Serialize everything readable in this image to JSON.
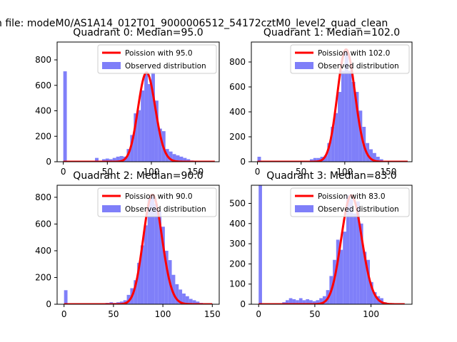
{
  "suptitle": "n file: modeM0/AS1A14_012T01_9000006512_54172cztM0_level2_quad_clean",
  "colors": {
    "hist": "#7f7ff9",
    "poisson": "#ff0000",
    "axes": "#000000"
  },
  "chart_data": [
    {
      "type": "bar",
      "title": "Quadrant 0: Median=95.0",
      "legend": {
        "placement": "top-right",
        "entries": [
          "Poission with 95.0",
          "Observed distribution"
        ]
      },
      "xlim": [
        -7,
        177
      ],
      "ylim": [
        0,
        940
      ],
      "xticks": [
        0,
        50,
        100,
        150
      ],
      "yticks": [
        0,
        200,
        400,
        600,
        800
      ],
      "bin_width": 4,
      "bins": [
        [
          0,
          710
        ],
        [
          36,
          30
        ],
        [
          44,
          20
        ],
        [
          48,
          25
        ],
        [
          52,
          20
        ],
        [
          56,
          30
        ],
        [
          60,
          40
        ],
        [
          64,
          45
        ],
        [
          68,
          40
        ],
        [
          72,
          100
        ],
        [
          76,
          210
        ],
        [
          80,
          380
        ],
        [
          84,
          405
        ],
        [
          88,
          560
        ],
        [
          92,
          700
        ],
        [
          96,
          610
        ],
        [
          100,
          700
        ],
        [
          104,
          480
        ],
        [
          108,
          260
        ],
        [
          112,
          240
        ],
        [
          116,
          100
        ],
        [
          120,
          80
        ],
        [
          124,
          60
        ],
        [
          128,
          50
        ],
        [
          132,
          40
        ],
        [
          136,
          30
        ],
        [
          140,
          20
        ],
        [
          144,
          10
        ]
      ],
      "poisson_mean": 95.0,
      "poisson_x": [
        0,
        172
      ]
    },
    {
      "type": "bar",
      "title": "Quadrant 1: Median=102.0",
      "legend": {
        "placement": "top-right",
        "entries": [
          "Poission with 102.0",
          "Observed distribution"
        ]
      },
      "xlim": [
        -7,
        177
      ],
      "ylim": [
        0,
        960
      ],
      "xticks": [
        0,
        50,
        100,
        150
      ],
      "yticks": [
        0,
        200,
        400,
        600,
        800
      ],
      "bin_width": 4,
      "bins": [
        [
          0,
          40
        ],
        [
          60,
          20
        ],
        [
          64,
          30
        ],
        [
          68,
          30
        ],
        [
          72,
          40
        ],
        [
          76,
          50
        ],
        [
          80,
          150
        ],
        [
          84,
          280
        ],
        [
          88,
          390
        ],
        [
          92,
          560
        ],
        [
          96,
          730
        ],
        [
          100,
          900
        ],
        [
          104,
          730
        ],
        [
          108,
          640
        ],
        [
          112,
          560
        ],
        [
          116,
          410
        ],
        [
          120,
          280
        ],
        [
          124,
          150
        ],
        [
          128,
          100
        ],
        [
          132,
          70
        ],
        [
          136,
          40
        ],
        [
          140,
          20
        ]
      ],
      "poisson_mean": 102.0,
      "poisson_x": [
        0,
        172
      ]
    },
    {
      "type": "bar",
      "title": "Quadrant 2: Median=90.0",
      "legend": {
        "placement": "top-right",
        "entries": [
          "Poission with 90.0",
          "Observed distribution"
        ]
      },
      "xlim": [
        -7,
        157
      ],
      "ylim": [
        0,
        890
      ],
      "xticks": [
        0,
        50,
        100,
        150
      ],
      "yticks": [
        0,
        200,
        400,
        600,
        800
      ],
      "bin_width": 3.5,
      "bins": [
        [
          0,
          105
        ],
        [
          42,
          10
        ],
        [
          46,
          15
        ],
        [
          49.5,
          10
        ],
        [
          53,
          15
        ],
        [
          56.5,
          20
        ],
        [
          60,
          30
        ],
        [
          63.5,
          70
        ],
        [
          67,
          120
        ],
        [
          70.5,
          180
        ],
        [
          74,
          310
        ],
        [
          77.5,
          440
        ],
        [
          81,
          590
        ],
        [
          84.5,
          790
        ],
        [
          88,
          820
        ],
        [
          91.5,
          750
        ],
        [
          95,
          700
        ],
        [
          98.5,
          580
        ],
        [
          102,
          400
        ],
        [
          105.5,
          330
        ],
        [
          109,
          220
        ],
        [
          112.5,
          150
        ],
        [
          116,
          110
        ],
        [
          119.5,
          80
        ],
        [
          123,
          60
        ],
        [
          126.5,
          40
        ],
        [
          130,
          30
        ],
        [
          133.5,
          20
        ],
        [
          137,
          10
        ]
      ],
      "poisson_mean": 90.0,
      "poisson_x": [
        0,
        150
      ]
    },
    {
      "type": "bar",
      "title": "Quadrant 3: Median=83.0",
      "legend": {
        "placement": "top-right",
        "entries": [
          "Poission with 83.0",
          "Observed distribution"
        ]
      },
      "xlim": [
        -6.5,
        136.5
      ],
      "ylim": [
        0,
        590
      ],
      "xticks": [
        0,
        50,
        100
      ],
      "yticks": [
        0,
        100,
        200,
        300,
        400,
        500
      ],
      "bin_width": 3,
      "bins": [
        [
          0,
          590
        ],
        [
          18,
          5
        ],
        [
          21,
          10
        ],
        [
          24,
          20
        ],
        [
          27,
          30
        ],
        [
          30,
          25
        ],
        [
          33,
          20
        ],
        [
          36,
          30
        ],
        [
          39,
          20
        ],
        [
          42,
          25
        ],
        [
          45,
          20
        ],
        [
          48,
          15
        ],
        [
          51,
          20
        ],
        [
          54,
          30
        ],
        [
          57,
          40
        ],
        [
          60,
          70
        ],
        [
          63,
          140
        ],
        [
          66,
          220
        ],
        [
          69,
          320
        ],
        [
          72,
          270
        ],
        [
          75,
          360
        ],
        [
          78,
          540
        ],
        [
          81,
          520
        ],
        [
          84,
          450
        ],
        [
          87,
          510
        ],
        [
          90,
          400
        ],
        [
          93,
          260
        ],
        [
          96,
          220
        ],
        [
          99,
          110
        ],
        [
          102,
          60
        ],
        [
          105,
          40
        ],
        [
          108,
          30
        ],
        [
          111,
          10
        ],
        [
          114,
          5
        ]
      ],
      "poisson_mean": 83.0,
      "poisson_x": [
        0,
        130
      ]
    }
  ]
}
